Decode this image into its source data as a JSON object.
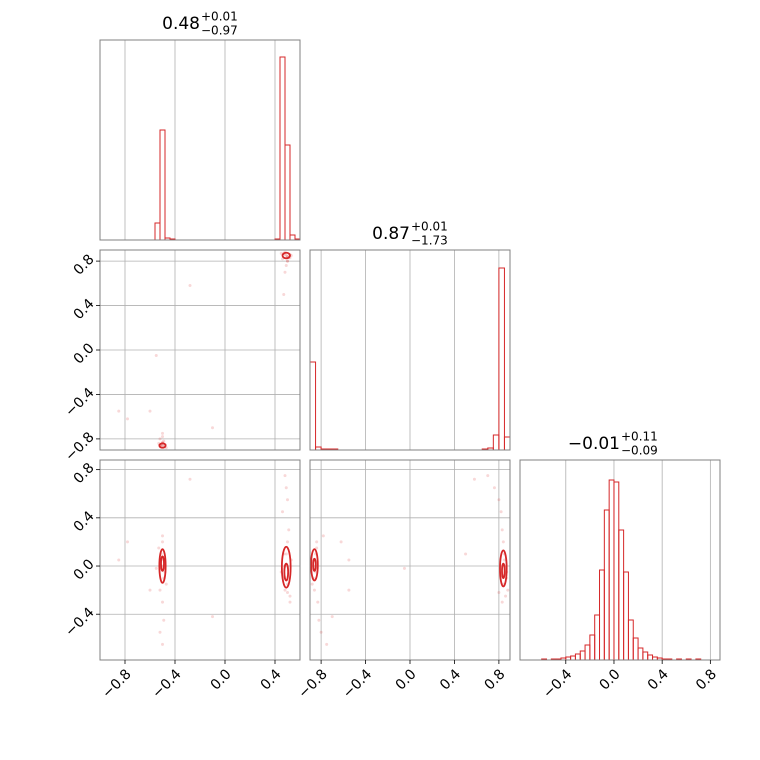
{
  "chart_data": {
    "type": "corner",
    "color": "#d62728",
    "grid": true,
    "hist_ylim": [
      0,
      200
    ],
    "params": [
      {
        "title": {
          "value": "0.48",
          "upper": "+0.01",
          "lower": "−0.97"
        },
        "lim": [
          -1.0,
          0.6
        ],
        "ticks": [
          {
            "value": -0.8,
            "label": "−0.8"
          },
          {
            "value": -0.4,
            "label": "−0.4"
          },
          {
            "value": 0,
            "label": "0.0"
          },
          0.4
        ],
        "bins": [
          -0.6,
          -0.56,
          -0.52,
          -0.48,
          -0.44,
          -0.4,
          -0.36,
          -0.32,
          -0.28,
          -0.24,
          -0.2,
          -0.16,
          -0.12,
          -0.08,
          -0.04,
          0,
          0.04,
          0.08,
          0.12,
          0.16,
          0.2,
          0.24,
          0.28,
          0.32,
          0.36,
          0.4,
          0.44,
          0.48,
          0.52,
          0.56,
          0.6
        ],
        "counts": [
          0,
          17,
          110,
          2,
          1,
          0,
          0,
          0,
          0,
          0,
          0,
          0,
          0,
          0,
          0,
          0,
          0,
          0,
          0,
          0,
          0,
          0,
          0,
          0,
          0,
          1,
          183,
          95,
          5,
          1
        ]
      },
      {
        "title": {
          "value": "0.87",
          "upper": "+0.01",
          "lower": "−1.73"
        },
        "lim": [
          -0.9,
          0.9
        ],
        "ticks": [
          {
            "value": -0.8,
            "label": "−0.8"
          },
          {
            "value": -0.4,
            "label": "−0.4"
          },
          {
            "value": 0,
            "label": "0.0"
          },
          0.4,
          0.8
        ],
        "bins": [
          -0.9,
          -0.85,
          -0.8,
          -0.75,
          -0.7,
          -0.65,
          -0.6,
          -0.55,
          -0.5,
          -0.45,
          -0.4,
          -0.35,
          -0.3,
          -0.25,
          -0.2,
          -0.15,
          -0.1,
          -0.05,
          0,
          0.05,
          0.1,
          0.15,
          0.2,
          0.25,
          0.3,
          0.35,
          0.4,
          0.45,
          0.5,
          0.55,
          0.6,
          0.65,
          0.7,
          0.75,
          0.8,
          0.85,
          0.9
        ],
        "counts": [
          88,
          3,
          1,
          1,
          1,
          0,
          0,
          0,
          0,
          0,
          0,
          0,
          0,
          0,
          0,
          0,
          0,
          0,
          0,
          0,
          0,
          0,
          0,
          0,
          0,
          0,
          0,
          0,
          0,
          0,
          0,
          1,
          2,
          15,
          182,
          13
        ]
      },
      {
        "title": {
          "value": "−0.01",
          "upper": "+0.11",
          "lower": "−0.09"
        },
        "lim": [
          -0.78,
          0.88
        ],
        "ticks": [
          {
            "value": -0.4,
            "label": "−0.4"
          },
          {
            "value": 0,
            "label": "0.0"
          },
          0.4,
          0.8
        ],
        "bins": [
          -0.6,
          -0.56,
          -0.52,
          -0.48,
          -0.44,
          -0.4,
          -0.36,
          -0.32,
          -0.28,
          -0.24,
          -0.2,
          -0.16,
          -0.12,
          -0.08,
          -0.04,
          0,
          0.04,
          0.08,
          0.12,
          0.16,
          0.2,
          0.24,
          0.28,
          0.32,
          0.36,
          0.4,
          0.44,
          0.48,
          0.52,
          0.56,
          0.6,
          0.64,
          0.68,
          0.72
        ],
        "counts": [
          1,
          0,
          1,
          1,
          2,
          3,
          4,
          6,
          9,
          15,
          25,
          45,
          90,
          150,
          180,
          178,
          130,
          88,
          40,
          22,
          12,
          8,
          5,
          3,
          2,
          1,
          1,
          0,
          1,
          0,
          1,
          0,
          1
        ]
      }
    ],
    "samples": [
      [
        -0.5,
        -0.51,
        -0.49,
        -0.5,
        -0.52,
        -0.5,
        -0.49,
        -0.52,
        -0.5,
        -0.51,
        -0.48,
        -0.53,
        -0.47,
        -0.5,
        -0.55,
        -0.85,
        -0.78,
        -0.1,
        -0.6,
        0.48,
        0.49,
        0.47,
        0.5,
        0.48,
        0.51,
        0.46,
        0.5,
        0.49,
        0.52,
        0.53,
        0.45,
        0.5,
        0.48,
        0.52,
        0.47,
        -0.28,
        0.5
      ],
      [
        -0.86,
        -0.85,
        -0.87,
        -0.84,
        -0.86,
        -0.83,
        -0.82,
        -0.8,
        -0.75,
        -0.86,
        -0.85,
        -0.84,
        -0.88,
        -0.78,
        -0.05,
        -0.55,
        -0.62,
        -0.7,
        -0.55,
        0.86,
        0.85,
        0.87,
        0.84,
        0.88,
        0.83,
        0.82,
        0.8,
        0.76,
        0.86,
        0.85,
        0.87,
        0.84,
        0.7,
        0.83,
        0.5,
        0.58,
        0.8
      ],
      [
        0,
        0.1,
        -0.1,
        0.2,
        -0.2,
        -0.3,
        -0.45,
        -0.55,
        -0.65,
        0.05,
        -0.05,
        0.15,
        -0.15,
        0.25,
        -0.02,
        0.05,
        0.2,
        -0.42,
        -0.2,
        0,
        0.1,
        -0.1,
        0.2,
        -0.2,
        0.3,
        0.45,
        0.55,
        0.65,
        -0.25,
        0.05,
        -0.05,
        -0.15,
        0.75,
        -0.3,
        0.1,
        0.72,
        -0.22
      ]
    ],
    "pairs": [
      {
        "x_param": 0,
        "y_param": 1,
        "contours": [
          {
            "x": 0.49,
            "y": 0.85,
            "rx": 0.03,
            "ry": 0.025
          },
          {
            "x": -0.5,
            "y": -0.86,
            "rx": 0.025,
            "ry": 0.02
          }
        ]
      },
      {
        "x_param": 0,
        "y_param": 2,
        "contours": [
          {
            "x": -0.5,
            "y": 0,
            "rx": 0.025,
            "ry": 0.14
          },
          {
            "x": -0.5,
            "y": 0.02,
            "rx": 0.012,
            "ry": 0.06
          },
          {
            "x": 0.49,
            "y": -0.01,
            "rx": 0.035,
            "ry": 0.17
          },
          {
            "x": 0.49,
            "y": -0.05,
            "rx": 0.015,
            "ry": 0.07
          }
        ]
      },
      {
        "x_param": 1,
        "y_param": 2,
        "contours": [
          {
            "x": -0.86,
            "y": 0.01,
            "rx": 0.03,
            "ry": 0.13
          },
          {
            "x": -0.86,
            "y": 0.01,
            "rx": 0.012,
            "ry": 0.05
          },
          {
            "x": 0.84,
            "y": -0.02,
            "rx": 0.03,
            "ry": 0.15
          },
          {
            "x": 0.84,
            "y": -0.04,
            "rx": 0.012,
            "ry": 0.06
          }
        ]
      }
    ]
  }
}
